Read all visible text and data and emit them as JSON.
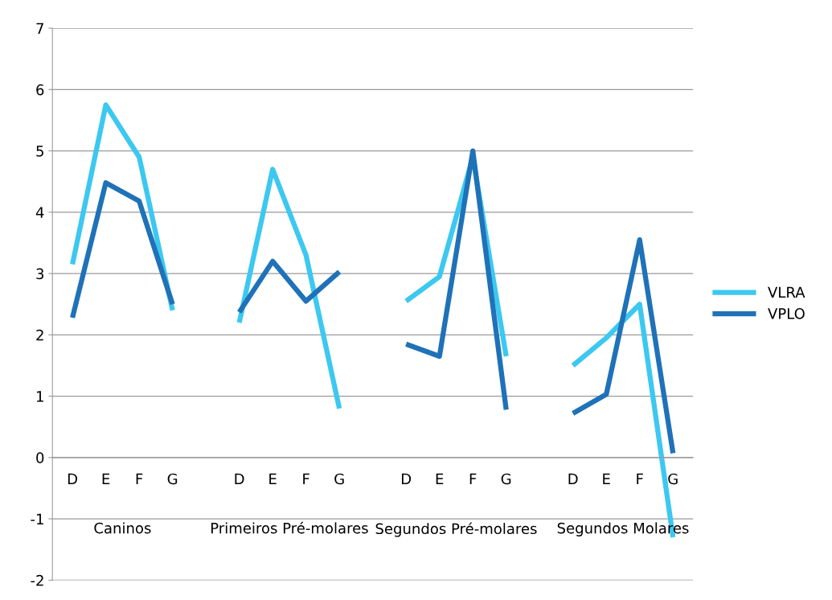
{
  "chart_data": {
    "type": "line",
    "categories": [
      "D",
      "E",
      "F",
      "G",
      null,
      "D",
      "E",
      "F",
      "G",
      null,
      "D",
      "E",
      "F",
      "G",
      null,
      "D",
      "E",
      "F",
      "G"
    ],
    "series": [
      {
        "name": "VLRA",
        "color": "#3cc8f0",
        "values": [
          3.15,
          5.75,
          4.9,
          2.4,
          null,
          2.2,
          4.7,
          3.3,
          0.8,
          null,
          2.55,
          2.95,
          4.9,
          1.65,
          null,
          1.5,
          1.95,
          2.5,
          -1.3
        ]
      },
      {
        "name": "VPLO",
        "color": "#1f72b8",
        "values": [
          2.28,
          4.48,
          4.18,
          2.5,
          null,
          2.37,
          3.2,
          2.55,
          3.03,
          null,
          1.85,
          1.65,
          5.0,
          0.78,
          null,
          0.72,
          1.03,
          3.55,
          0.07
        ]
      }
    ],
    "annotations": [
      "Caninos",
      "Primeiros Pré-molares",
      "Segundos Pré-molares",
      "Segundos Molares"
    ],
    "ylim": [
      -2,
      7
    ],
    "yticks": [
      -2,
      -1,
      0,
      1,
      2,
      3,
      4,
      5,
      6,
      7
    ],
    "grid": "y",
    "legend": "right",
    "marker": "none",
    "line_style": "solid"
  }
}
